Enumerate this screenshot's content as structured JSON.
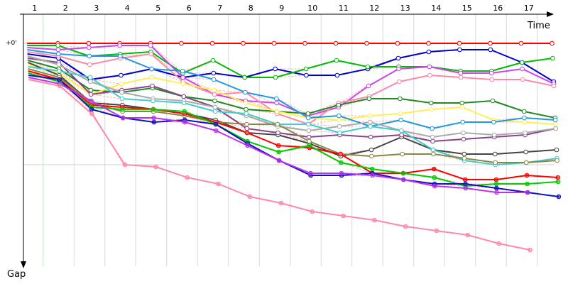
{
  "chart_data": {
    "type": "line",
    "x_axis_label": "Time",
    "y_axis_label": "Gap",
    "zero_label": "+0'",
    "x_tick_labels": [
      "1",
      "2",
      "3",
      "4",
      "5",
      "6",
      "7",
      "8",
      "9",
      "10",
      "11",
      "12",
      "13",
      "14",
      "15",
      "16",
      "17"
    ],
    "x_range": [
      0,
      18
    ],
    "y_range": [
      0,
      100
    ],
    "y_direction": "down",
    "grid": true,
    "series": [
      {
        "color": "#ff0000",
        "marker": "open",
        "values": [
          0,
          0,
          0,
          0,
          0,
          0,
          0,
          0,
          0,
          0,
          0,
          0,
          0,
          0,
          0,
          0,
          0,
          0
        ]
      },
      {
        "color": "#0000cc",
        "marker": "open",
        "values": [
          5,
          7,
          17,
          15,
          12,
          16,
          14,
          16,
          12,
          15,
          15,
          12,
          7,
          4,
          3,
          3,
          9,
          18
        ]
      },
      {
        "color": "#00bb00",
        "marker": "open",
        "values": [
          1,
          1,
          6,
          5,
          4,
          14,
          8,
          16,
          16,
          12,
          8,
          11,
          11,
          11,
          13,
          13,
          9,
          7
        ]
      },
      {
        "color": "#cc44ee",
        "marker": "open",
        "values": [
          2,
          3,
          2,
          1,
          1,
          16,
          24,
          27,
          28,
          34,
          30,
          20,
          12,
          11,
          14,
          14,
          12,
          19
        ]
      },
      {
        "color": "#ff88aa",
        "marker": "open",
        "values": [
          4,
          6,
          10,
          7,
          5,
          18,
          24,
          23,
          33,
          38,
          28,
          25,
          18,
          15,
          16,
          17,
          17,
          20
        ]
      },
      {
        "color": "#228822",
        "marker": "open",
        "values": [
          8,
          12,
          22,
          23,
          21,
          25,
          27,
          31,
          32,
          33,
          29,
          26,
          26,
          28,
          28,
          27,
          32,
          35
        ]
      },
      {
        "color": "#ffee55",
        "marker": "open",
        "values": [
          10,
          14,
          24,
          19,
          16,
          19,
          22,
          28,
          32,
          35,
          36,
          34,
          33,
          31,
          30,
          36,
          37,
          38
        ]
      },
      {
        "color": "#2299dd",
        "marker": "open",
        "values": [
          3,
          5,
          6,
          6,
          12,
          13,
          17,
          23,
          26,
          35,
          34,
          39,
          36,
          40,
          37,
          37,
          35,
          36
        ]
      },
      {
        "color": "#444444",
        "marker": "open",
        "values": [
          9,
          15,
          28,
          29,
          31,
          33,
          36,
          42,
          43,
          47,
          53,
          50,
          44,
          50,
          52,
          52,
          51,
          50
        ]
      },
      {
        "color": "#884488",
        "marker": "open",
        "values": [
          7,
          9,
          24,
          22,
          20,
          25,
          30,
          40,
          42,
          44,
          43,
          44,
          43,
          46,
          45,
          44,
          43,
          40
        ]
      },
      {
        "color": "#aaaaaa",
        "marker": "open",
        "values": [
          6,
          10,
          18,
          23,
          26,
          27,
          30,
          34,
          39,
          41,
          39,
          37,
          41,
          44,
          42,
          43,
          42,
          40
        ]
      },
      {
        "color": "#44cccc",
        "marker": "open",
        "values": [
          11,
          13,
          16,
          26,
          27,
          28,
          32,
          33,
          38,
          38,
          42,
          39,
          41,
          50,
          55,
          57,
          56,
          54
        ]
      },
      {
        "color": "#888844",
        "marker": "open",
        "values": [
          12,
          16,
          28,
          32,
          32,
          34,
          37,
          38,
          38,
          46,
          52,
          53,
          52,
          52,
          54,
          56,
          56,
          55
        ]
      },
      {
        "color": "#ff0000",
        "marker": "filled",
        "values": [
          13,
          17,
          29,
          30,
          31,
          33,
          37,
          42,
          48,
          49,
          52,
          61,
          61,
          59,
          64,
          64,
          62,
          63
        ]
      },
      {
        "color": "#00cc00",
        "marker": "filled",
        "values": [
          14,
          18,
          30,
          31,
          31,
          32,
          38,
          46,
          51,
          48,
          56,
          59,
          61,
          63,
          67,
          66,
          66,
          65
        ]
      },
      {
        "color": "#1111bb",
        "marker": "filled",
        "values": [
          15,
          17,
          31,
          35,
          37,
          36,
          38,
          47,
          55,
          62,
          62,
          61,
          64,
          66,
          66,
          68,
          70,
          72
        ]
      },
      {
        "color": "#bb33ee",
        "marker": "filled",
        "values": [
          16,
          19,
          27,
          35,
          35,
          37,
          41,
          48,
          55,
          61,
          61,
          62,
          64,
          67,
          68,
          70,
          70
        ]
      },
      {
        "color": "#ff88aa",
        "marker": "filled",
        "values": [
          17,
          20,
          33,
          57,
          58,
          63,
          66,
          72,
          75,
          79,
          81,
          83,
          86,
          88,
          90,
          94,
          97
        ]
      }
    ]
  }
}
